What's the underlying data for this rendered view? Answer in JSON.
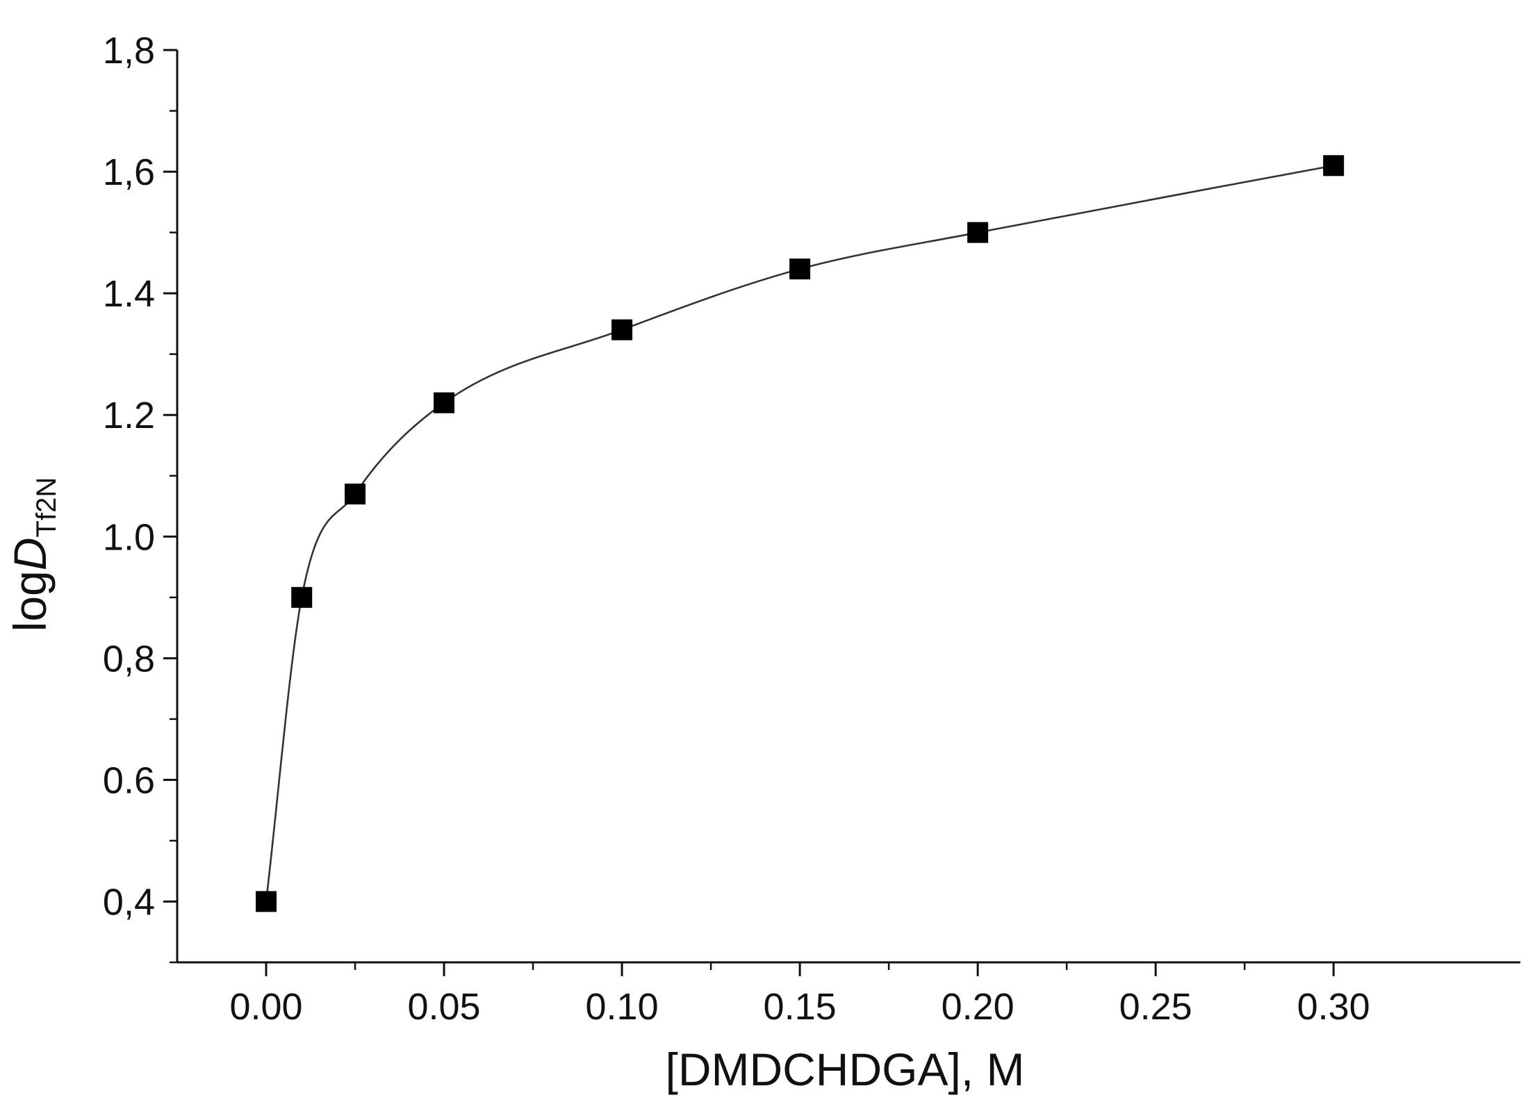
{
  "chart_data": {
    "type": "scatter",
    "title": "",
    "xlabel": "[DMDCHDGA], M",
    "ylabel": {
      "main": "log",
      "italic": "D",
      "subscript": "Tf2N"
    },
    "xlim": [
      -0.025,
      0.3525
    ],
    "ylim": [
      0.3,
      1.8
    ],
    "xticks": [
      0.0,
      0.05,
      0.1,
      0.15,
      0.2,
      0.25,
      0.3
    ],
    "xtick_labels": [
      "0.00",
      "0.05",
      "0.10",
      "0.15",
      "0.20",
      "0.25",
      "0.30"
    ],
    "yticks": [
      0.4,
      0.6,
      0.8,
      1.0,
      1.2,
      1.4,
      1.6,
      1.8
    ],
    "ytick_labels": [
      "0,4",
      "0.6",
      "0,8",
      "1.0",
      "1.2",
      "1.4",
      "1,6",
      "1,8"
    ],
    "grid": false,
    "legend": false,
    "series": [
      {
        "marker": "square",
        "color": "#000000",
        "x": [
          0.0,
          0.01,
          0.025,
          0.05,
          0.1,
          0.15,
          0.2,
          0.3
        ],
        "y": [
          0.4,
          0.9,
          1.07,
          1.22,
          1.34,
          1.44,
          1.5,
          1.61
        ]
      }
    ],
    "fit_line": {
      "style": "smooth-curve",
      "color": "#333333",
      "through_series": 0
    }
  }
}
